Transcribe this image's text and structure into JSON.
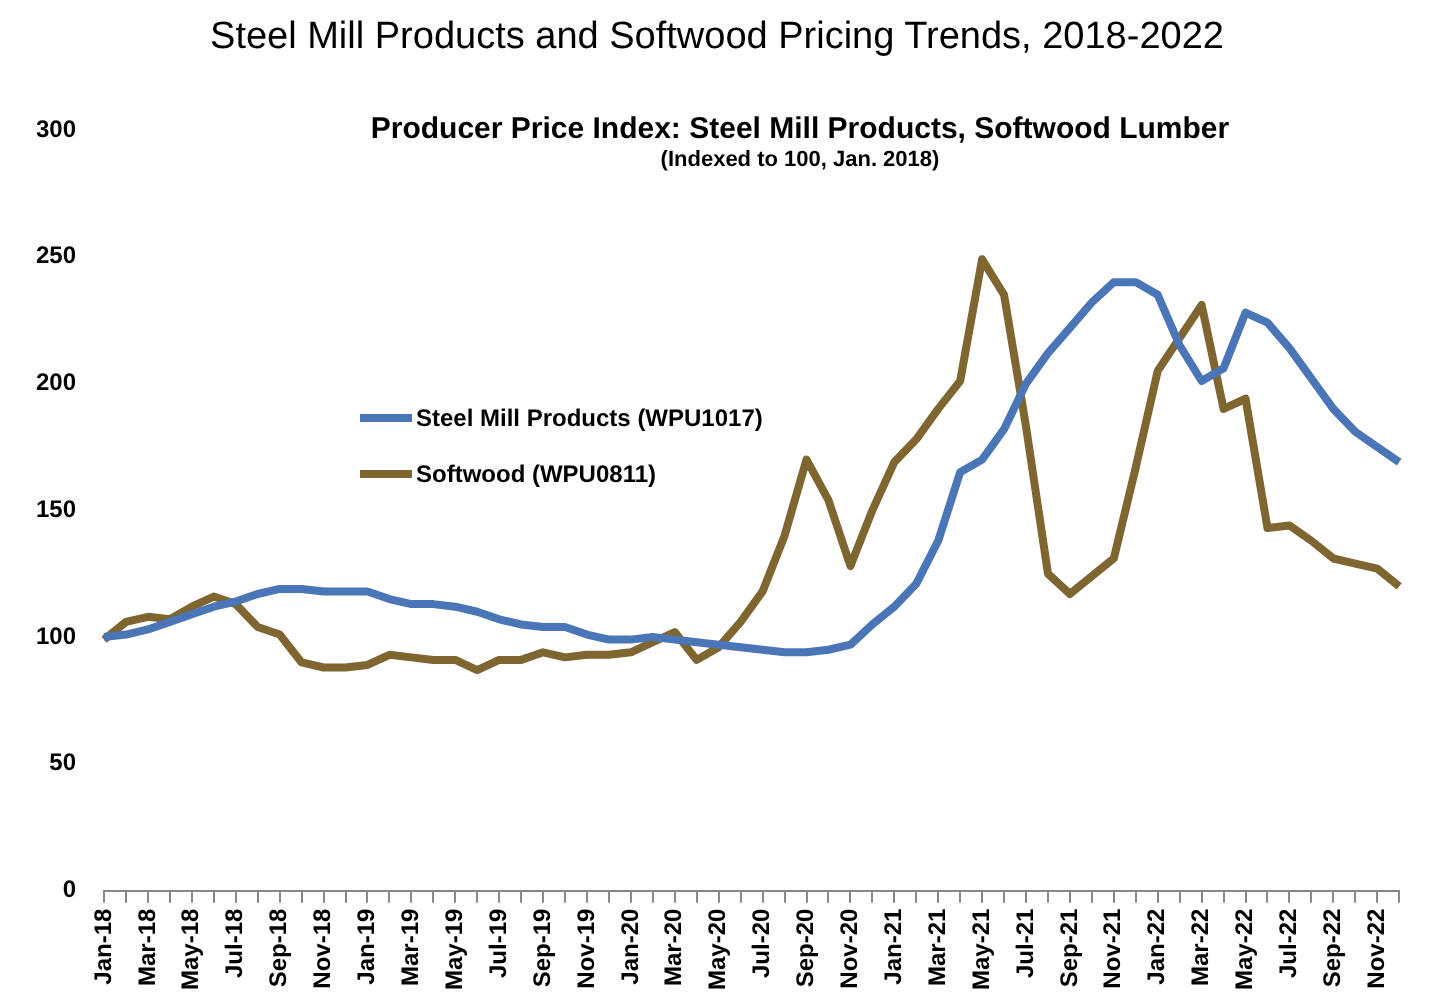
{
  "chart_data": {
    "type": "line",
    "title": "Steel Mill Products and Softwood Pricing Trends, 2018-2022",
    "subtitle": "Producer Price Index: Steel Mill Products, Softwood Lumber",
    "annotations": [
      "(Indexed to 100, Jan. 2018)"
    ],
    "categories": [
      "Jan-18",
      null,
      "Mar-18",
      null,
      "May-18",
      null,
      "Jul-18",
      null,
      "Sep-18",
      null,
      "Nov-18",
      null,
      "Jan-19",
      null,
      "Mar-19",
      null,
      "May-19",
      null,
      "Jul-19",
      null,
      "Sep-19",
      null,
      "Nov-19",
      null,
      "Jan-20",
      null,
      "Mar-20",
      null,
      "May-20",
      null,
      "Jul-20",
      null,
      "Sep-20",
      null,
      "Nov-20",
      null,
      "Jan-21",
      null,
      "Mar-21",
      null,
      "May-21",
      null,
      "Jul-21",
      null,
      "Sep-21",
      null,
      "Nov-21",
      null,
      "Jan-22",
      null,
      "Mar-22",
      null,
      "May-22",
      null,
      "Jul-22",
      null,
      "Sep-22",
      null,
      "Nov-22",
      null
    ],
    "series": [
      {
        "name": "Steel Mill Products (WPU1017)",
        "color": "#4a76b8",
        "values": [
          100,
          101,
          103,
          106,
          109,
          112,
          114,
          117,
          119,
          119,
          118,
          118,
          118,
          115,
          113,
          113,
          112,
          110,
          107,
          105,
          104,
          104,
          101,
          99,
          99,
          100,
          99,
          98,
          97,
          96,
          95,
          94,
          94,
          95,
          97,
          105,
          112,
          121,
          138,
          165,
          170,
          182,
          200,
          212,
          222,
          232,
          240,
          240,
          235,
          215,
          201,
          206,
          228,
          224,
          214,
          202,
          190,
          181,
          175,
          169
        ]
      },
      {
        "name": "Softwood (WPU0811)",
        "color": "#7f6530",
        "values": [
          99,
          106,
          108,
          107,
          112,
          116,
          113,
          104,
          101,
          90,
          88,
          88,
          89,
          93,
          92,
          91,
          91,
          87,
          91,
          91,
          94,
          92,
          93,
          93,
          94,
          98,
          102,
          91,
          96,
          106,
          118,
          140,
          170,
          154,
          128,
          150,
          169,
          178,
          190,
          201,
          249,
          235,
          183,
          125,
          117,
          124,
          131,
          167,
          205,
          218,
          231,
          190,
          194,
          143,
          144,
          138,
          131,
          129,
          127,
          120
        ]
      }
    ],
    "ylim": [
      0,
      300
    ],
    "yticks": [
      0,
      50,
      100,
      150,
      200,
      250,
      300
    ],
    "grid": false,
    "legend": "center left",
    "marker": "none",
    "line_style": "solid"
  }
}
